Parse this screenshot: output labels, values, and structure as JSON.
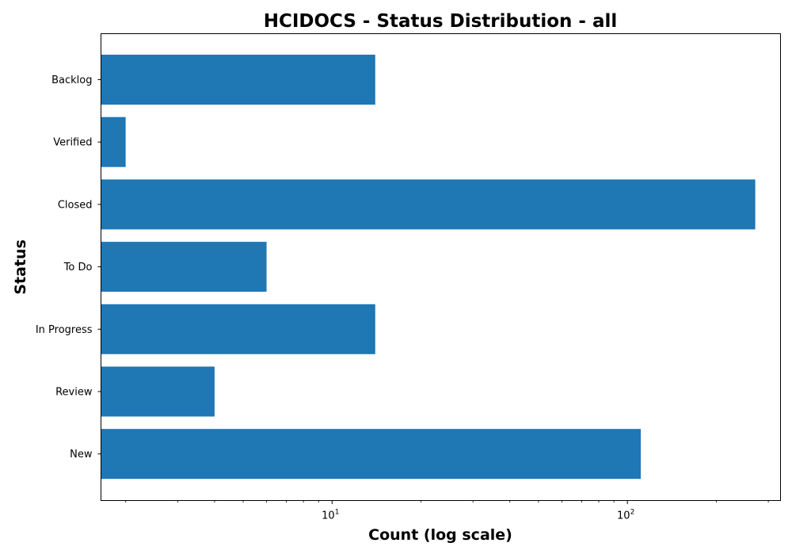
{
  "chart_data": {
    "type": "bar",
    "orientation": "horizontal",
    "title": "HCIDOCS - Status Distribution - all",
    "xlabel": "Count (log scale)",
    "ylabel": "Status",
    "x_scale": "log",
    "xlim": [
      1.65,
      330
    ],
    "categories": [
      "Backlog",
      "Verified",
      "Closed",
      "To Do",
      "In Progress",
      "Review",
      "New"
    ],
    "values": [
      14,
      2,
      271,
      6,
      14,
      4,
      111
    ],
    "x_ticks": [
      {
        "value": 10,
        "base": "10",
        "exponent": "1"
      },
      {
        "value": 100,
        "base": "10",
        "exponent": "2"
      }
    ],
    "bar_color": "#1f77b4",
    "grid": false,
    "legend": "none"
  }
}
